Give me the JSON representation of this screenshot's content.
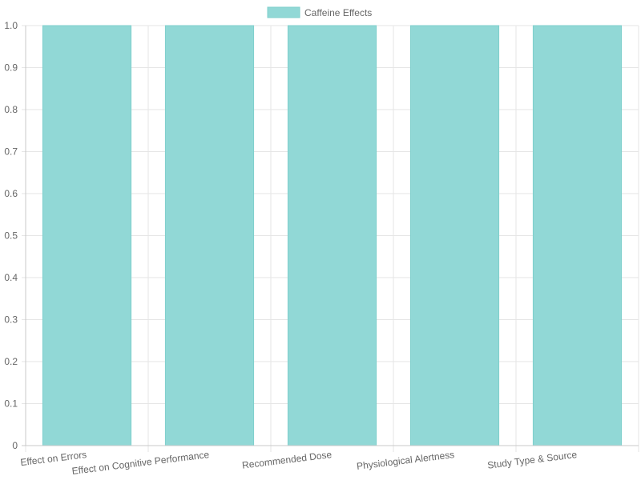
{
  "chart_data": {
    "type": "bar",
    "categories": [
      "Effect on Errors",
      "Effect on Cognitive Performance",
      "Recommended Dose",
      "Physiological Alertness",
      "Study Type & Source"
    ],
    "series": [
      {
        "name": "Caffeine Effects",
        "values": [
          1,
          1,
          1,
          1,
          1
        ]
      }
    ],
    "ylim": [
      0,
      1
    ],
    "yticks": [
      "0",
      "0.1",
      "0.2",
      "0.3",
      "0.4",
      "0.5",
      "0.6",
      "0.7",
      "0.8",
      "0.9",
      "1.0"
    ],
    "grid": true,
    "legend_position": "top",
    "colors": {
      "bar_fill": "#91d8d6",
      "bar_stroke": "#7fcfcc",
      "grid": "#e6e6e6",
      "axis": "#c8c8c8",
      "tick_text": "#666666"
    }
  }
}
